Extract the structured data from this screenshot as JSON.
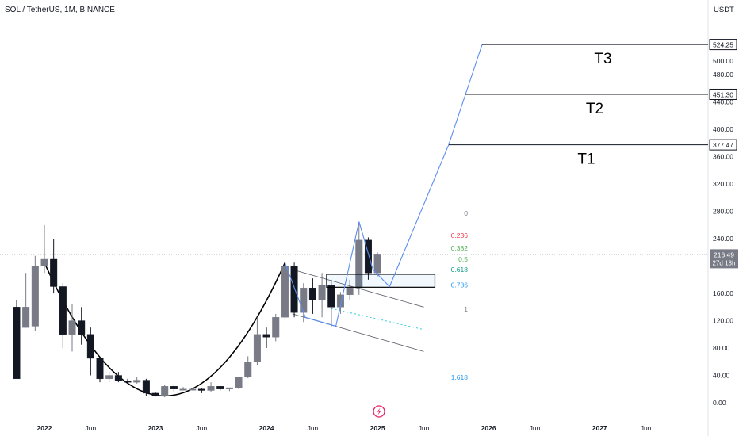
{
  "header": {
    "symbol_label": "SOL / TetherUS, 1M, BINANCE",
    "currency": "USDT"
  },
  "watermark_icon": "bolt-icon",
  "chart_data": {
    "type": "candlestick",
    "title": "SOL / TetherUS, 1M, BINANCE",
    "y_unit": "USDT",
    "ylim": [
      0,
      500
    ],
    "y_ticks": [
      {
        "value": 0,
        "label": "0.00"
      },
      {
        "value": 40,
        "label": "40.00"
      },
      {
        "value": 80,
        "label": "80.00"
      },
      {
        "value": 120,
        "label": "120.00"
      },
      {
        "value": 160,
        "label": "160.00"
      },
      {
        "value": 240,
        "label": "240.00"
      },
      {
        "value": 280,
        "label": "280.00"
      },
      {
        "value": 320,
        "label": "320.00"
      },
      {
        "value": 360,
        "label": "360.00"
      },
      {
        "value": 400,
        "label": "400.00"
      },
      {
        "value": 440,
        "label": "440.00"
      },
      {
        "value": 480,
        "label": "480.00"
      },
      {
        "value": 500,
        "label": "500.00"
      }
    ],
    "x_ticks": [
      {
        "m": 0,
        "label": "2022",
        "bold": true
      },
      {
        "m": 5,
        "label": "Jun",
        "bold": false
      },
      {
        "m": 12,
        "label": "2023",
        "bold": true
      },
      {
        "m": 17,
        "label": "Jun",
        "bold": false
      },
      {
        "m": 24,
        "label": "2024",
        "bold": true
      },
      {
        "m": 29,
        "label": "Jun",
        "bold": false
      },
      {
        "m": 36,
        "label": "2025",
        "bold": true
      },
      {
        "m": 41,
        "label": "Jun",
        "bold": false
      },
      {
        "m": 48,
        "label": "2026",
        "bold": true
      },
      {
        "m": 53,
        "label": "Jun",
        "bold": false
      },
      {
        "m": 60,
        "label": "2027",
        "bold": true
      },
      {
        "m": 65,
        "label": "Jun",
        "bold": false
      }
    ],
    "candles": [
      {
        "m": -3,
        "o": 140,
        "h": 150,
        "l": 40,
        "c": 35
      },
      {
        "m": -2,
        "o": 110,
        "h": 190,
        "l": 110,
        "c": 140
      },
      {
        "m": -1,
        "o": 112,
        "h": 215,
        "l": 105,
        "c": 200
      },
      {
        "m": 0,
        "o": 200,
        "h": 260,
        "l": 190,
        "c": 210
      },
      {
        "m": 1,
        "o": 210,
        "h": 240,
        "l": 160,
        "c": 170
      },
      {
        "m": 2,
        "o": 170,
        "h": 175,
        "l": 80,
        "c": 100
      },
      {
        "m": 3,
        "o": 100,
        "h": 145,
        "l": 75,
        "c": 120
      },
      {
        "m": 4,
        "o": 120,
        "h": 140,
        "l": 85,
        "c": 100
      },
      {
        "m": 5,
        "o": 100,
        "h": 110,
        "l": 40,
        "c": 65
      },
      {
        "m": 6,
        "o": 65,
        "h": 65,
        "l": 30,
        "c": 35
      },
      {
        "m": 7,
        "o": 35,
        "h": 45,
        "l": 30,
        "c": 40
      },
      {
        "m": 8,
        "o": 40,
        "h": 45,
        "l": 30,
        "c": 32
      },
      {
        "m": 9,
        "o": 32,
        "h": 35,
        "l": 28,
        "c": 30
      },
      {
        "m": 10,
        "o": 30,
        "h": 38,
        "l": 28,
        "c": 33
      },
      {
        "m": 11,
        "o": 33,
        "h": 35,
        "l": 10,
        "c": 14
      },
      {
        "m": 12,
        "o": 14,
        "h": 16,
        "l": 9,
        "c": 10
      },
      {
        "m": 13,
        "o": 10,
        "h": 26,
        "l": 8,
        "c": 24
      },
      {
        "m": 14,
        "o": 24,
        "h": 27,
        "l": 16,
        "c": 20
      },
      {
        "m": 15,
        "o": 20,
        "h": 23,
        "l": 18,
        "c": 20
      },
      {
        "m": 16,
        "o": 20,
        "h": 22,
        "l": 18,
        "c": 20
      },
      {
        "m": 17,
        "o": 20,
        "h": 22,
        "l": 14,
        "c": 18
      },
      {
        "m": 18,
        "o": 18,
        "h": 30,
        "l": 16,
        "c": 24
      },
      {
        "m": 19,
        "o": 24,
        "h": 24,
        "l": 18,
        "c": 20
      },
      {
        "m": 20,
        "o": 20,
        "h": 22,
        "l": 17,
        "c": 22
      },
      {
        "m": 21,
        "o": 22,
        "h": 38,
        "l": 20,
        "c": 38
      },
      {
        "m": 22,
        "o": 38,
        "h": 68,
        "l": 36,
        "c": 60
      },
      {
        "m": 23,
        "o": 60,
        "h": 125,
        "l": 55,
        "c": 100
      },
      {
        "m": 24,
        "o": 100,
        "h": 110,
        "l": 80,
        "c": 96
      },
      {
        "m": 25,
        "o": 96,
        "h": 130,
        "l": 90,
        "c": 125
      },
      {
        "m": 26,
        "o": 125,
        "h": 205,
        "l": 120,
        "c": 200
      },
      {
        "m": 27,
        "o": 200,
        "h": 205,
        "l": 125,
        "c": 132
      },
      {
        "m": 28,
        "o": 132,
        "h": 175,
        "l": 118,
        "c": 168
      },
      {
        "m": 29,
        "o": 168,
        "h": 182,
        "l": 130,
        "c": 150
      },
      {
        "m": 30,
        "o": 150,
        "h": 190,
        "l": 125,
        "c": 172
      },
      {
        "m": 31,
        "o": 172,
        "h": 180,
        "l": 112,
        "c": 140
      },
      {
        "m": 32,
        "o": 140,
        "h": 162,
        "l": 130,
        "c": 158
      },
      {
        "m": 33,
        "o": 158,
        "h": 180,
        "l": 150,
        "c": 168
      },
      {
        "m": 34,
        "o": 168,
        "h": 265,
        "l": 158,
        "c": 238
      },
      {
        "m": 35,
        "o": 238,
        "h": 242,
        "l": 180,
        "c": 190
      },
      {
        "m": 36,
        "o": 190,
        "h": 220,
        "l": 185,
        "c": 216.5
      }
    ],
    "current_price": {
      "value": 216.49,
      "label": "216.49",
      "countdown": "27d 13h"
    },
    "targets": [
      {
        "name": "T3",
        "value": 524.25,
        "label": "524.25"
      },
      {
        "name": "T2",
        "value": 451.3,
        "label": "451.30"
      },
      {
        "name": "T1",
        "value": 377.47,
        "label": "377.47"
      }
    ],
    "fib_levels": [
      {
        "label": "0",
        "value": 277,
        "color": "#787b86"
      },
      {
        "label": "0.236",
        "value": 245,
        "color": "#f23645"
      },
      {
        "label": "0.382",
        "value": 226,
        "color": "#4caf50"
      },
      {
        "label": "0.5",
        "value": 210,
        "color": "#4caf50"
      },
      {
        "label": "0.618",
        "value": 195,
        "color": "#089981"
      },
      {
        "label": "0.786",
        "value": 172,
        "color": "#2196f3"
      },
      {
        "label": "1",
        "value": 137,
        "color": "#787b86"
      },
      {
        "label": "1.618",
        "value": 37,
        "color": "#2196f3"
      }
    ],
    "projection_path": [
      {
        "m": 26,
        "v": 205
      },
      {
        "m": 28.2,
        "v": 125
      },
      {
        "m": 31.5,
        "v": 112
      },
      {
        "m": 34,
        "v": 265
      },
      {
        "m": 35.5,
        "v": 195
      },
      {
        "m": 37.3,
        "v": 170
      },
      {
        "m": 43.7,
        "v": 378
      },
      {
        "m": 45.5,
        "v": 451
      },
      {
        "m": 47.3,
        "v": 524
      }
    ],
    "rounding_bottom_curve": [
      {
        "m": 0,
        "v": 205
      },
      {
        "m": 13,
        "v": 10
      },
      {
        "m": 26,
        "v": 205
      }
    ],
    "channel_lines": [
      {
        "m1": 26.8,
        "v1": 195,
        "m2": 41,
        "v2": 140,
        "style": "solid"
      },
      {
        "m1": 26.8,
        "v1": 130,
        "m2": 41,
        "v2": 75,
        "style": "solid"
      },
      {
        "m1": 31,
        "v1": 138,
        "m2": 41,
        "v2": 107,
        "style": "dotted"
      }
    ],
    "demand_zone": {
      "m1": 30.5,
      "m2": 42.2,
      "v_low": 169,
      "v_high": 188
    }
  }
}
